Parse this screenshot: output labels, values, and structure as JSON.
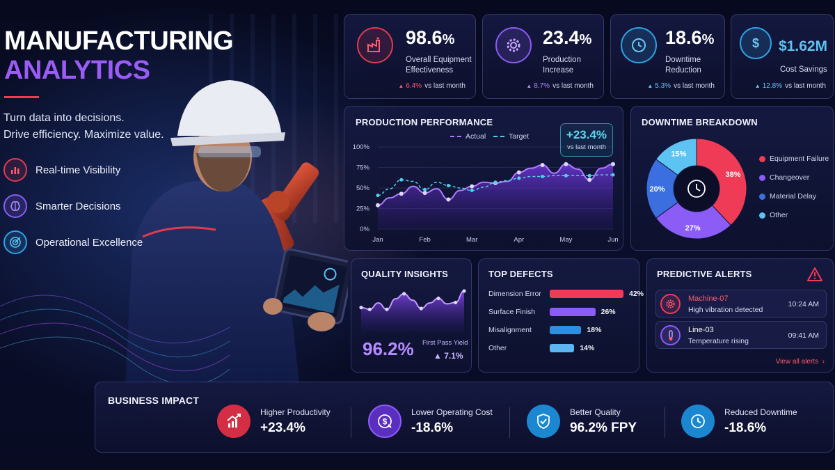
{
  "hero": {
    "title_line1": "MANUFACTURING",
    "title_line2": "ANALYTICS",
    "tagline_line1": "Turn data into decisions.",
    "tagline_line2": "Drive efficiency. Maximize value.",
    "features": [
      {
        "label": "Real-time Visibility",
        "icon": "bar-chart-icon"
      },
      {
        "label": "Smarter Decisions",
        "icon": "brain-icon"
      },
      {
        "label": "Operational Excellence",
        "icon": "target-icon"
      }
    ]
  },
  "kpis": [
    {
      "value": "98.6",
      "unit": "%",
      "label_line1": "Overall Equipment",
      "label_line2": "Effectiveness",
      "delta": "6.4%",
      "delta_suffix": "vs last month",
      "icon": "factory-icon",
      "color": "#e23a4e"
    },
    {
      "value": "23.4",
      "unit": "%",
      "label_line1": "Production",
      "label_line2": "Increase",
      "delta": "8.7%",
      "delta_suffix": "vs last month",
      "icon": "gear-icon",
      "color": "#8b5cf6"
    },
    {
      "value": "18.6",
      "unit": "%",
      "label_line1": "Downtime",
      "label_line2": "Reduction",
      "delta": "5.3%",
      "delta_suffix": "vs last month",
      "icon": "clock-icon",
      "color": "#2ea3e6"
    },
    {
      "value": "$1.62M",
      "unit": "",
      "label_line1": "Cost Savings",
      "label_line2": "",
      "delta": "12.8%",
      "delta_suffix": "vs last month",
      "icon": "dollar-icon",
      "color": "#2ea3e6"
    }
  ],
  "production": {
    "title": "PRODUCTION PERFORMANCE",
    "legend_actual": "Actual",
    "legend_target": "Target",
    "badge_value": "+23.4%",
    "badge_label": "vs last month"
  },
  "downtime": {
    "title": "DOWNTIME BREAKDOWN",
    "legend": [
      {
        "label": "Equipment Failure",
        "color": "#ef3b55"
      },
      {
        "label": "Changeover",
        "color": "#8b5cf6"
      },
      {
        "label": "Material Delay",
        "color": "#3b6fe0"
      },
      {
        "label": "Other",
        "color": "#5cc3f2"
      }
    ]
  },
  "quality": {
    "title": "QUALITY INSIGHTS",
    "value": "96.2%",
    "label": "First Pass Yield",
    "delta": "7.1%"
  },
  "defects": {
    "title": "TOP DEFECTS",
    "items": [
      {
        "label": "Dimension Error",
        "value": "42%",
        "pct": 42,
        "color": "#ef3b55"
      },
      {
        "label": "Surface Finish",
        "value": "26%",
        "pct": 26,
        "color": "#8b5cf6"
      },
      {
        "label": "Misalignment",
        "value": "18%",
        "pct": 18,
        "color": "#2e8fe0"
      },
      {
        "label": "Other",
        "value": "14%",
        "pct": 14,
        "color": "#5cb6f2"
      }
    ]
  },
  "alerts": {
    "title": "PREDICTIVE ALERTS",
    "items": [
      {
        "name": "Machine-07",
        "message": "High vibration detected",
        "time": "10:24 AM",
        "icon": "gear-alert-icon",
        "color": "#ef3b55"
      },
      {
        "name": "Line-03",
        "message": "Temperature rising",
        "time": "09:41 AM",
        "icon": "thermometer-icon",
        "color": "#ffffff"
      }
    ],
    "view_all": "View all alerts"
  },
  "impact": {
    "title": "BUSINESS IMPACT",
    "items": [
      {
        "label": "Higher Productivity",
        "value": "+23.4%",
        "icon": "trend-up-icon",
        "color": "#e23a4e"
      },
      {
        "label": "Lower Operating Cost",
        "value": "-18.6%",
        "icon": "cost-down-icon",
        "color": "#8b5cf6"
      },
      {
        "label": "Better Quality",
        "value": "96.2% FPY",
        "icon": "shield-check-icon",
        "color": "#2ea3e6"
      },
      {
        "label": "Reduced Downtime",
        "value": "-18.6%",
        "icon": "clock-icon",
        "color": "#2ea3e6"
      }
    ]
  },
  "chart_data": [
    {
      "type": "line",
      "title": "PRODUCTION PERFORMANCE",
      "categories": [
        "Jan",
        "Feb",
        "Mar",
        "Apr",
        "May",
        "Jun"
      ],
      "x": [
        0,
        0.5,
        1,
        1.5,
        2,
        2.5,
        3,
        3.5,
        4,
        4.5,
        5,
        5.5,
        6,
        6.5,
        7,
        7.5,
        8,
        8.5,
        9,
        9.5,
        10
      ],
      "y_ticks": [
        "0%",
        "25%",
        "50%",
        "75%",
        "100%"
      ],
      "ylim": [
        0,
        100
      ],
      "series": [
        {
          "name": "Actual",
          "values": [
            29,
            38,
            43,
            52,
            44,
            49,
            36,
            47,
            52,
            57,
            56,
            58,
            69,
            74,
            78,
            68,
            79,
            73,
            60,
            74,
            79
          ],
          "color": "#b07cff"
        },
        {
          "name": "Target",
          "values": [
            41,
            49,
            60,
            58,
            48,
            57,
            53,
            50,
            47,
            51,
            57,
            59,
            62,
            64,
            64,
            65,
            65,
            65,
            65,
            66,
            66
          ],
          "color": "#4fd1e8"
        }
      ]
    },
    {
      "type": "pie",
      "title": "DOWNTIME BREAKDOWN",
      "categories": [
        "Equipment Failure",
        "Changeover",
        "Material Delay",
        "Other"
      ],
      "values": [
        38,
        27,
        20,
        15
      ],
      "colors": [
        "#ef3b55",
        "#8b5cf6",
        "#3b6fe0",
        "#5cc3f2"
      ]
    },
    {
      "type": "area",
      "title": "QUALITY INSIGHTS",
      "x": [
        0,
        1,
        2,
        3,
        4,
        5,
        6,
        7,
        8,
        9,
        10,
        11,
        12
      ],
      "values": [
        52,
        48,
        62,
        48,
        71,
        82,
        68,
        50,
        62,
        72,
        60,
        63,
        88
      ]
    }
  ]
}
